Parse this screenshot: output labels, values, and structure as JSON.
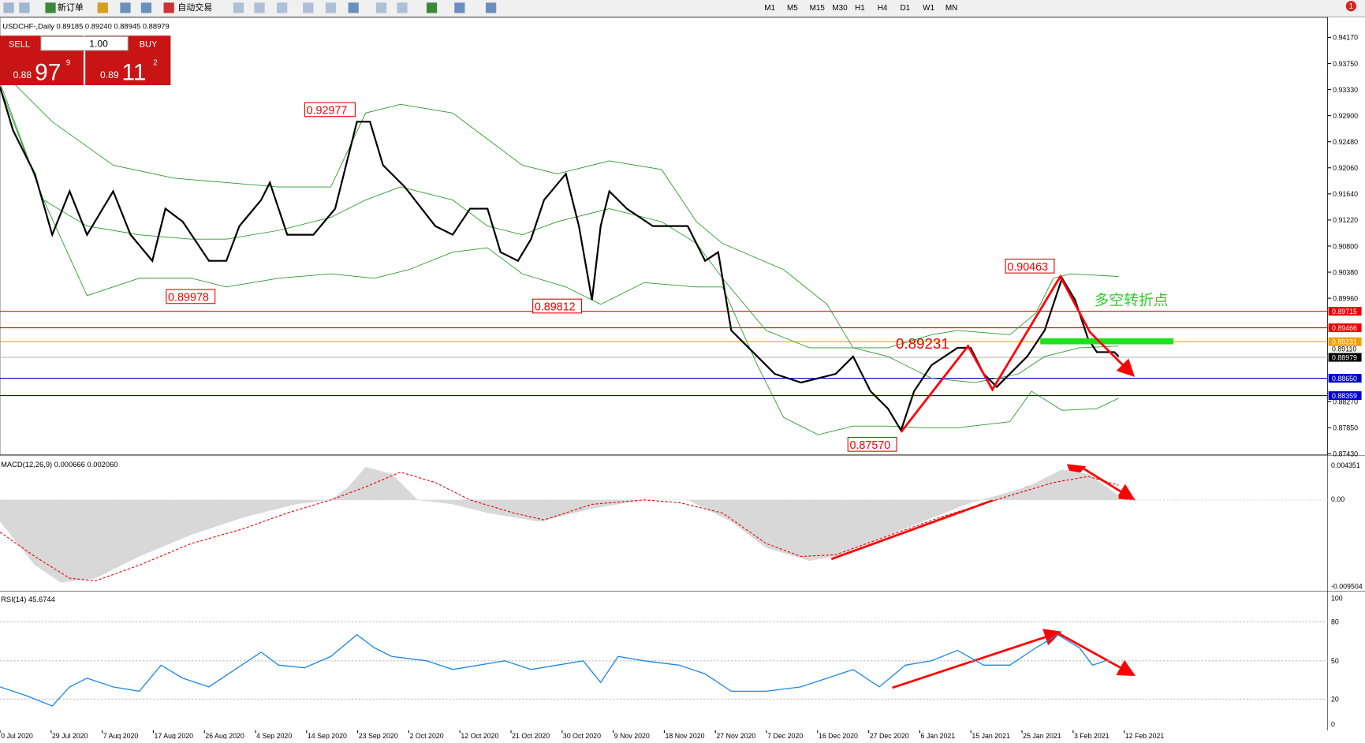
{
  "toolbar": {
    "new_order": "新订单",
    "auto_trading": "自动交易",
    "timeframes": [
      "M1",
      "M5",
      "M15",
      "M30",
      "H1",
      "H4",
      "D1",
      "W1",
      "MN"
    ]
  },
  "trade_panel": {
    "sell": "SELL",
    "buy": "BUY",
    "lot": "1.00",
    "sell_price": {
      "big": "0.88",
      "main": "97",
      "pip": "9"
    },
    "buy_price": {
      "big": "0.89",
      "main": "11",
      "pip": "2"
    }
  },
  "chart": {
    "header": "USDCHF-,Daily  0.89185 0.89240 0.88945 0.88979",
    "price_axis": [
      "0.94170",
      "0.93750",
      "0.93330",
      "0.92900",
      "0.92480",
      "0.92060",
      "0.91640",
      "0.91220",
      "0.90800",
      "0.90380",
      "0.89960",
      "0.88270",
      "0.87850",
      "0.87430"
    ],
    "line_labels": [
      "0.89715",
      "0.89466",
      "0.89231",
      "0.89110",
      "0.88979",
      "0.88650",
      "0.88359"
    ],
    "annotations": [
      "0.92977",
      "0.89978",
      "0.89812",
      "0.89231",
      "0.90463",
      "0.87570"
    ],
    "turning_point": "多空转折点",
    "dates": [
      "0 Jul 2020",
      "29 Jul 2020",
      "7 Aug 2020",
      "17 Aug 2020",
      "26 Aug 2020",
      "4 Sep 2020",
      "14 Sep 2020",
      "23 Sep 2020",
      "2 Oct 2020",
      "12 Oct 2020",
      "21 Oct 2020",
      "30 Oct 2020",
      "9 Nov 2020",
      "18 Nov 2020",
      "27 Nov 2020",
      "7 Dec 2020",
      "16 Dec 2020",
      "27 Dec 2020",
      "6 Jan 2021",
      "15 Jan 2021",
      "25 Jan 2021",
      "3 Feb 2021",
      "12 Feb 2021"
    ]
  },
  "macd": {
    "header": "MACD(12,26,9) 0.000666 0.002060",
    "axis": [
      "0.004351",
      "0.00",
      "-0.009504"
    ]
  },
  "rsi": {
    "header": "RSI(14) 45.6744",
    "axis": [
      "100",
      "80",
      "50",
      "20",
      "0"
    ]
  },
  "notification": "1"
}
